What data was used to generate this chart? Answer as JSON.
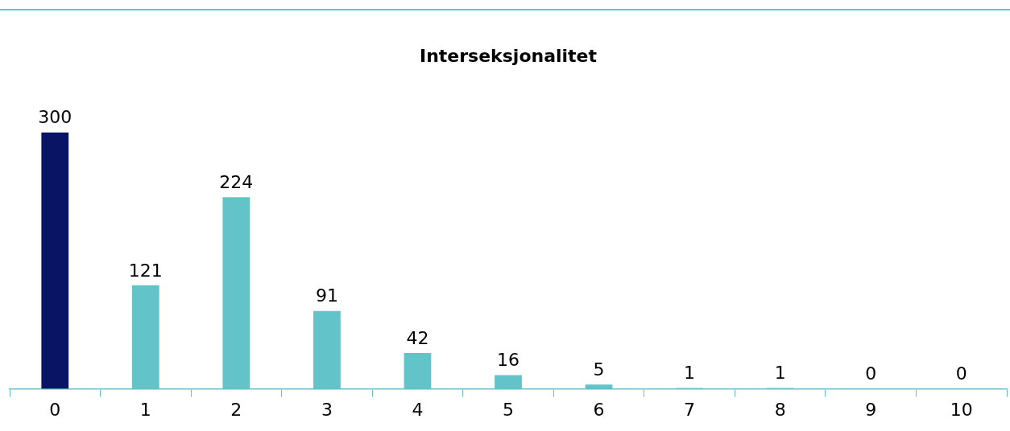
{
  "chart_data": {
    "type": "bar",
    "title": "Interseksjonalitet",
    "categories": [
      "0",
      "1",
      "2",
      "3",
      "4",
      "5",
      "6",
      "7",
      "8",
      "9",
      "10"
    ],
    "values": [
      300,
      121,
      224,
      91,
      42,
      16,
      5,
      1,
      1,
      0,
      0
    ],
    "colors": [
      "#0a1464",
      "#62c3c8",
      "#62c3c8",
      "#62c3c8",
      "#62c3c8",
      "#62c3c8",
      "#62c3c8",
      "#62c3c8",
      "#62c3c8",
      "#62c3c8",
      "#62c3c8"
    ],
    "data_labels": true,
    "grid": false,
    "legend": false
  }
}
